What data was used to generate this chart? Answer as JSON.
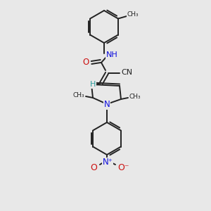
{
  "background_color": "#e8e8e8",
  "bond_color": "#222222",
  "atom_colors": {
    "N": "#1010dd",
    "O": "#cc1010",
    "H": "#2a9a9a",
    "C": "#222222"
  },
  "figsize": [
    3.0,
    3.0
  ],
  "dpi": 100,
  "xlim": [
    0,
    300
  ],
  "ylim": [
    0,
    300
  ]
}
